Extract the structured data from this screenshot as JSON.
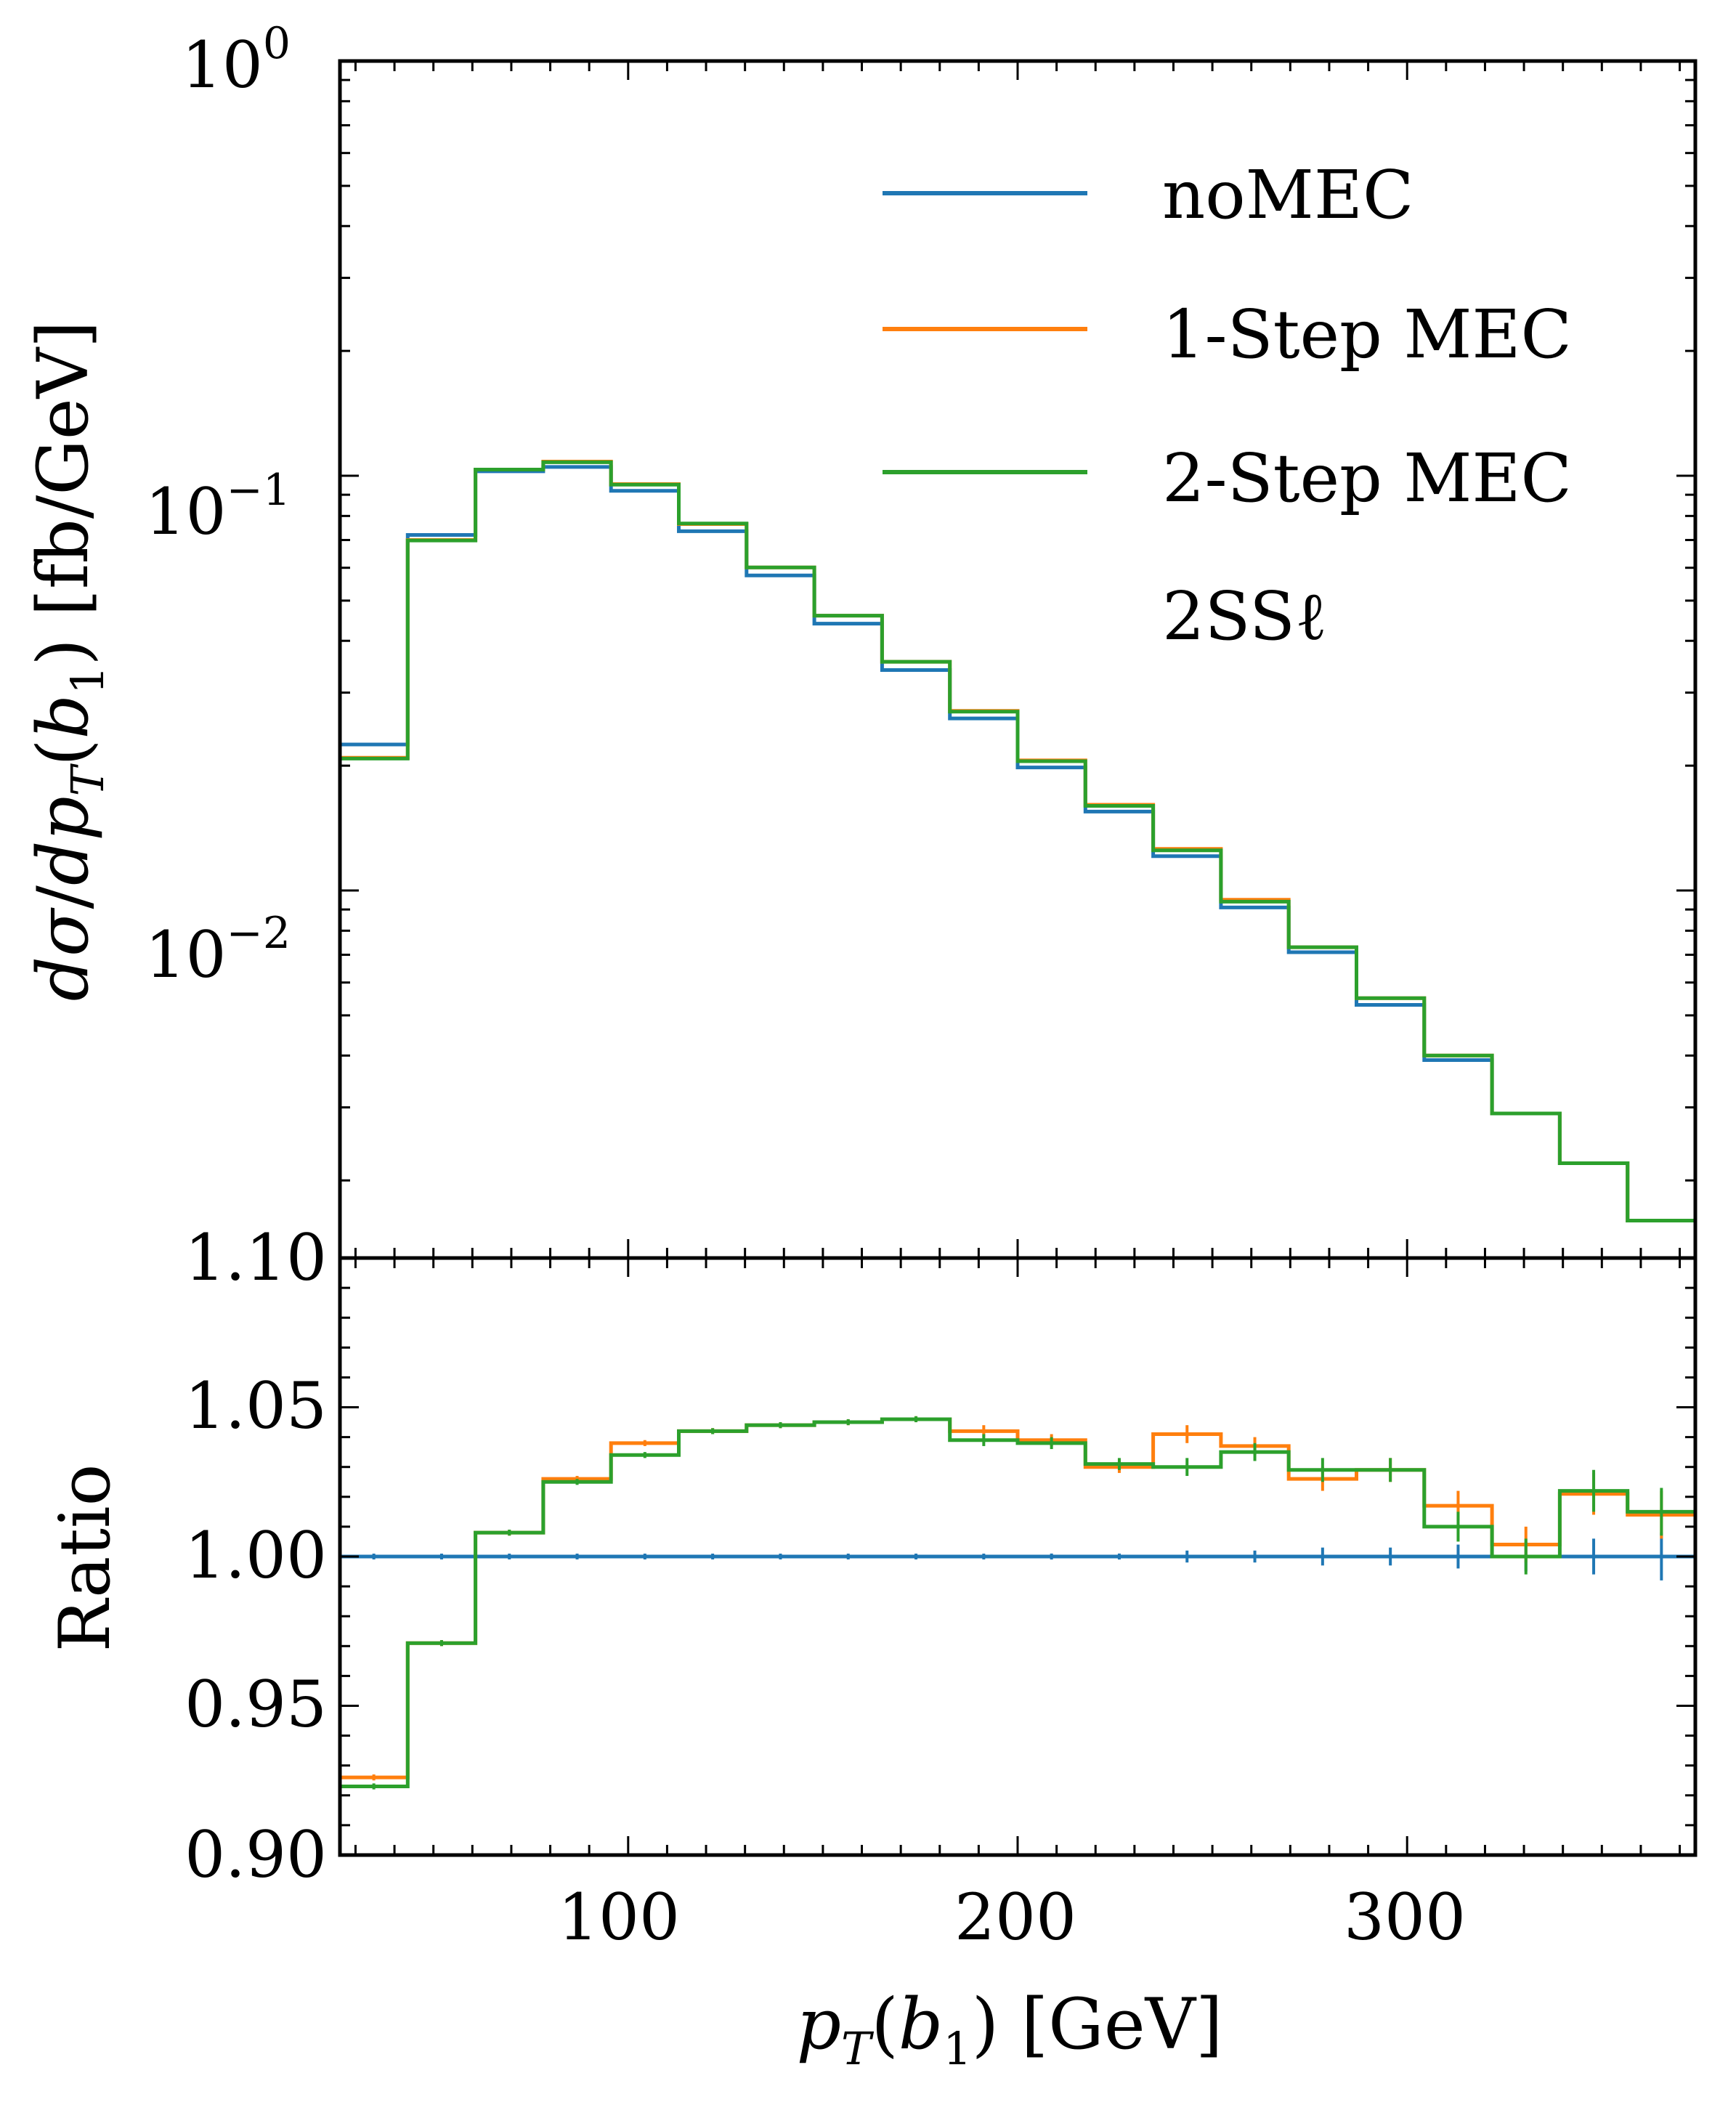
{
  "chart_data": {
    "type": "line",
    "title": "",
    "xlabel": "p_T(b_1) [GeV]",
    "xlabel_parts": {
      "p": "p",
      "T": "T",
      "open": "(",
      "b": "b",
      "sub1": "1",
      "close": ")",
      "unit": "[GeV]"
    },
    "xlim": [
      26,
      374
    ],
    "x_ticks": [
      100,
      200,
      300
    ],
    "x_tick_labels": [
      "100",
      "200",
      "300"
    ],
    "bin_edges": [
      26,
      43.4,
      60.8,
      78.2,
      95.6,
      113,
      130.4,
      147.8,
      165.2,
      182.6,
      200,
      217.4,
      234.8,
      252.2,
      269.6,
      287,
      304.4,
      321.8,
      339.2,
      356.6,
      374
    ],
    "grid": false,
    "legend": {
      "placement": "top-right",
      "entries": [
        "noMEC",
        "1-Step MEC",
        "2-Step MEC"
      ],
      "annotation": "2SSℓ"
    },
    "colors": {
      "noMEC": "#1f77b4",
      "1-Step MEC": "#ff7f0e",
      "2-Step MEC": "#2ca02c"
    },
    "panels": [
      {
        "name": "main",
        "ylabel": "dσ/dp_T(b_1) [fb/GeV]",
        "ylabel_parts": {
          "d1": "d",
          "sigma": "σ",
          "slash": "/",
          "d2": "dp",
          "T": "T",
          "open": "(",
          "b": "b",
          "sub1": "1",
          "close": ")",
          "unit": "[fb/GeV]"
        },
        "yscale": "log",
        "ylim": [
          0.0013,
          1.0
        ],
        "y_ticks": [
          0.01,
          0.1,
          1.0
        ],
        "y_tick_labels": [
          {
            "base": "10",
            "exp": "−2"
          },
          {
            "base": "10",
            "exp": "−1"
          },
          {
            "base": "10",
            "exp": "0"
          }
        ],
        "series": [
          {
            "name": "noMEC",
            "values": [
              0.0225,
              0.072,
              0.1025,
              0.105,
              0.092,
              0.0735,
              0.0575,
              0.044,
              0.034,
              0.026,
              0.0198,
              0.0155,
              0.0121,
              0.0091,
              0.0071,
              0.0053,
              0.0039,
              0.0029,
              0.0022,
              0.0016
            ]
          },
          {
            "name": "1-Step MEC",
            "values": [
              0.0209,
              0.07,
              0.1035,
              0.1082,
              0.0955,
              0.0765,
              0.0601,
              0.046,
              0.0356,
              0.0271,
              0.0206,
              0.0161,
              0.0126,
              0.0095,
              0.0073,
              0.0055,
              0.004,
              0.0029,
              0.0022,
              0.0016
            ]
          },
          {
            "name": "2-Step MEC",
            "values": [
              0.0208,
              0.0698,
              0.1035,
              0.1078,
              0.0952,
              0.0767,
              0.0601,
              0.046,
              0.0356,
              0.027,
              0.0205,
              0.016,
              0.0125,
              0.0094,
              0.0073,
              0.0055,
              0.004,
              0.0029,
              0.0022,
              0.0016
            ]
          }
        ]
      },
      {
        "name": "ratio",
        "ylabel": "Ratio",
        "yscale": "linear",
        "ylim": [
          0.9,
          1.1
        ],
        "y_ticks": [
          0.9,
          0.95,
          1.0,
          1.05,
          1.1
        ],
        "y_tick_labels": [
          "0.90",
          "0.95",
          "1.00",
          "1.05",
          "1.10"
        ],
        "series": [
          {
            "name": "noMEC",
            "values": [
              1.0,
              1.0,
              1.0,
              1.0,
              1.0,
              1.0,
              1.0,
              1.0,
              1.0,
              1.0,
              1.0,
              1.0,
              1.0,
              1.0,
              1.0,
              1.0,
              1.0,
              1.0,
              1.0,
              1.0
            ],
            "errors": [
              0.0,
              0.0,
              0.0,
              0.0,
              0.0,
              0.0,
              0.0,
              0.0,
              0.0,
              0.0,
              0.001,
              0.001,
              0.002,
              0.002,
              0.003,
              0.003,
              0.004,
              0.005,
              0.006,
              0.008
            ]
          },
          {
            "name": "1-Step MEC",
            "values": [
              0.926,
              0.971,
              1.008,
              1.026,
              1.038,
              1.042,
              1.044,
              1.045,
              1.046,
              1.042,
              1.039,
              1.03,
              1.041,
              1.037,
              1.026,
              1.029,
              1.017,
              1.004,
              1.021,
              1.014
            ],
            "errors": [
              0.001,
              0.001,
              0.001,
              0.001,
              0.001,
              0.001,
              0.001,
              0.001,
              0.001,
              0.002,
              0.002,
              0.002,
              0.003,
              0.003,
              0.004,
              0.004,
              0.005,
              0.006,
              0.007,
              0.008
            ]
          },
          {
            "name": "2-Step MEC",
            "values": [
              0.923,
              0.971,
              1.008,
              1.025,
              1.034,
              1.042,
              1.044,
              1.045,
              1.046,
              1.039,
              1.038,
              1.031,
              1.03,
              1.035,
              1.029,
              1.029,
              1.01,
              1.0,
              1.022,
              1.015
            ],
            "errors": [
              0.001,
              0.001,
              0.001,
              0.001,
              0.001,
              0.001,
              0.001,
              0.001,
              0.001,
              0.002,
              0.002,
              0.002,
              0.003,
              0.003,
              0.004,
              0.004,
              0.005,
              0.006,
              0.007,
              0.008
            ]
          }
        ]
      }
    ]
  }
}
